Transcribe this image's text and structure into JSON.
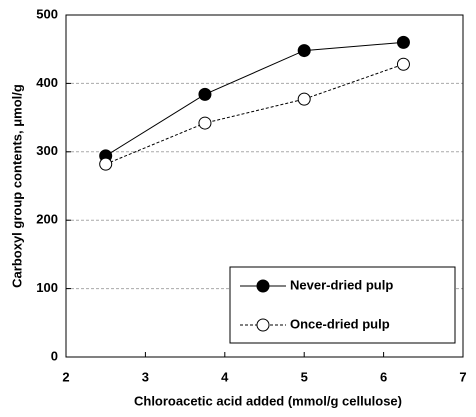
{
  "chart_data": {
    "type": "line",
    "x_label": "Chloroacetic acid added (mmol/g cellulose)",
    "y_label": "Carboxyl group contents, μmol/g",
    "x": [
      2.5,
      3.75,
      5,
      6.25
    ],
    "series": [
      {
        "name": "Never-dried pulp",
        "color": "#000000",
        "line_style": "solid",
        "marker": "filled",
        "values": [
          294,
          384,
          448,
          460
        ]
      },
      {
        "name": "Once-dried pulp",
        "color": "#000000",
        "line_style": "dotted",
        "marker": "open",
        "values": [
          282,
          342,
          377,
          428
        ]
      }
    ],
    "xlim": [
      2,
      7
    ],
    "xticks": [
      2,
      3,
      4,
      5,
      6,
      7
    ],
    "ylim": [
      0,
      500
    ],
    "yticks": [
      0,
      100,
      200,
      300,
      400,
      500
    ],
    "grid": true,
    "legend": "lower right"
  }
}
